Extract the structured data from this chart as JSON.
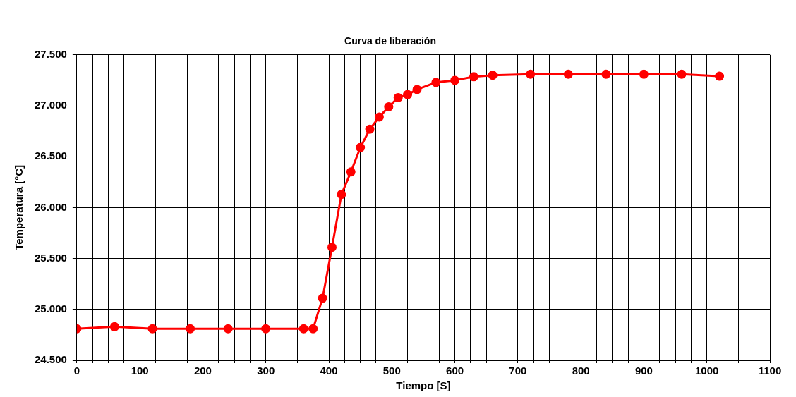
{
  "chart_data": {
    "type": "line",
    "title": "Curva de liberación",
    "xlabel": "Tiempo [S]",
    "ylabel": "Temperatura [°C]",
    "x": [
      0,
      60,
      120,
      180,
      240,
      300,
      360,
      375,
      390,
      405,
      420,
      435,
      450,
      465,
      480,
      495,
      510,
      525,
      540,
      570,
      600,
      630,
      660,
      720,
      780,
      840,
      900,
      960,
      1020
    ],
    "series": [
      {
        "color": "#ff0000",
        "values": [
          24810,
          24830,
          24810,
          24810,
          24810,
          24810,
          24810,
          24810,
          25110,
          25610,
          26130,
          26350,
          26590,
          26770,
          26890,
          26990,
          27080,
          27110,
          27160,
          27230,
          27250,
          27285,
          27300,
          27310,
          27310,
          27310,
          27310,
          27310,
          27290
        ]
      }
    ],
    "xlim": [
      0,
      1100
    ],
    "xticks": [
      0,
      {
        "value": 25,
        "label": null
      },
      {
        "value": 50,
        "label": null
      },
      {
        "value": 75,
        "label": null
      },
      100,
      {
        "value": 125,
        "label": null
      },
      {
        "value": 150,
        "label": null
      },
      {
        "value": 175,
        "label": null
      },
      200,
      {
        "value": 225,
        "label": null
      },
      {
        "value": 250,
        "label": null
      },
      {
        "value": 275,
        "label": null
      },
      300,
      {
        "value": 325,
        "label": null
      },
      {
        "value": 350,
        "label": null
      },
      {
        "value": 375,
        "label": null
      },
      400,
      {
        "value": 425,
        "label": null
      },
      {
        "value": 450,
        "label": null
      },
      {
        "value": 475,
        "label": null
      },
      500,
      {
        "value": 525,
        "label": null
      },
      {
        "value": 550,
        "label": null
      },
      {
        "value": 575,
        "label": null
      },
      600,
      {
        "value": 625,
        "label": null
      },
      {
        "value": 650,
        "label": null
      },
      {
        "value": 675,
        "label": null
      },
      700,
      {
        "value": 725,
        "label": null
      },
      {
        "value": 750,
        "label": null
      },
      {
        "value": 775,
        "label": null
      },
      800,
      {
        "value": 825,
        "label": null
      },
      {
        "value": 850,
        "label": null
      },
      {
        "value": 875,
        "label": null
      },
      900,
      {
        "value": 925,
        "label": null
      },
      {
        "value": 950,
        "label": null
      },
      {
        "value": 975,
        "label": null
      },
      1000,
      {
        "value": 1025,
        "label": null
      },
      {
        "value": 1050,
        "label": null
      },
      {
        "value": 1075,
        "label": null
      },
      1100
    ],
    "ylim": [
      24500,
      27500
    ],
    "yticks": [
      {
        "value": 24500,
        "label": "24.500"
      },
      {
        "value": 25000,
        "label": "25.000"
      },
      {
        "value": 25500,
        "label": "25.500"
      },
      {
        "value": 26000,
        "label": "26.000"
      },
      {
        "value": 26500,
        "label": "26.500"
      },
      {
        "value": 27000,
        "label": "27.000"
      },
      {
        "value": 27500,
        "label": "27.500"
      }
    ],
    "grid": true,
    "legend": false,
    "marker": "circle",
    "line_style": "solid"
  }
}
